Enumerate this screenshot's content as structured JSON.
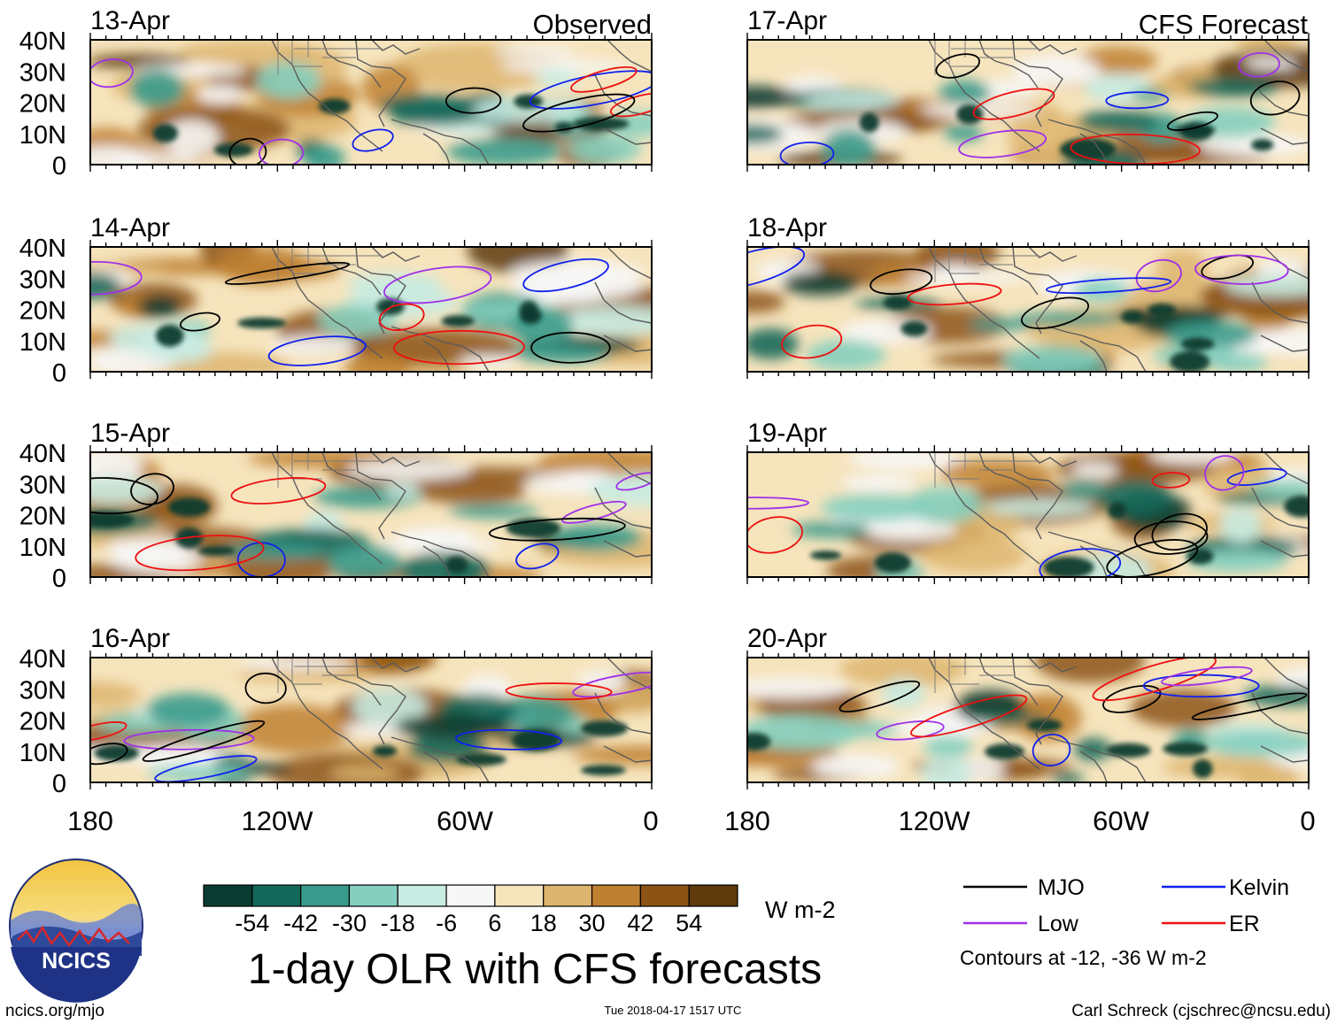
{
  "figure": {
    "title": "1-day OLR with CFS forecasts",
    "source_url": "ncics.org/mjo",
    "timestamp": "Tue 2018-04-17 1517 UTC",
    "credit": "Carl Schreck (cjschrec@ncsu.edu)",
    "logo_text": "NCICS"
  },
  "headers": {
    "observed": "Observed",
    "forecast": "CFS Forecast"
  },
  "axes": {
    "lat_labels": [
      "40N",
      "30N",
      "20N",
      "10N",
      "0"
    ],
    "lon_labels": [
      "180",
      "120W",
      "60W",
      "0"
    ]
  },
  "panels": [
    {
      "date": "13-Apr",
      "kind": "Observed"
    },
    {
      "date": "14-Apr",
      "kind": "Observed"
    },
    {
      "date": "15-Apr",
      "kind": "Observed"
    },
    {
      "date": "16-Apr",
      "kind": "Observed"
    },
    {
      "date": "17-Apr",
      "kind": "CFS Forecast"
    },
    {
      "date": "18-Apr",
      "kind": "CFS Forecast"
    },
    {
      "date": "19-Apr",
      "kind": "CFS Forecast"
    },
    {
      "date": "20-Apr",
      "kind": "CFS Forecast"
    }
  ],
  "colorbar": {
    "units": "W m-2",
    "labels": [
      "-54",
      "-42",
      "-30",
      "-18",
      "-6",
      "6",
      "18",
      "30",
      "42",
      "54"
    ],
    "colors": [
      "#0b3b30",
      "#14685a",
      "#3a9b8c",
      "#85cfbf",
      "#c8ebe2",
      "#f7f7f7",
      "#f6e4bd",
      "#ddb56e",
      "#bf8131",
      "#8c5414",
      "#5e3a0d"
    ]
  },
  "legend": {
    "entries": [
      {
        "label": "MJO",
        "color": "#000000"
      },
      {
        "label": "Kelvin",
        "color": "#1020ee"
      },
      {
        "label": "Low",
        "color": "#a030e8"
      },
      {
        "label": "ER",
        "color": "#ee1010"
      }
    ],
    "note": "Contours at -12, -36 W m-2"
  }
}
